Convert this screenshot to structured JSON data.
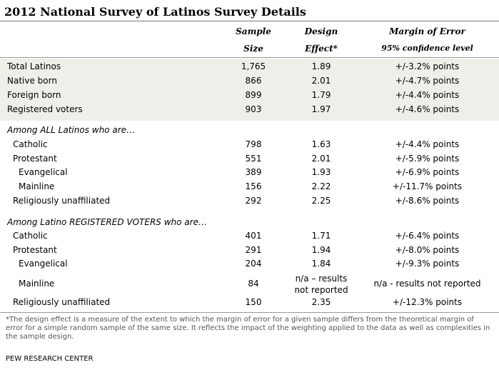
{
  "title": "2012 National Survey of Latinos Survey Details",
  "headers": {
    "sample_line1": "Sample",
    "sample_line2": "Size",
    "design_line1": "Design",
    "design_line2": "Effect*",
    "moe_line1": "Margin of Error",
    "moe_line2": "95% confidence level"
  },
  "rows_total": [
    {
      "label": "Total Latinos",
      "size": "1,765",
      "effect": "1.89",
      "moe": "+/-3.2% points"
    },
    {
      "label": "Native born",
      "size": "866",
      "effect": "2.01",
      "moe": "+/-4.7% points"
    },
    {
      "label": "Foreign born",
      "size": "899",
      "effect": "1.79",
      "moe": "+/-4.4% points"
    },
    {
      "label": "Registered voters",
      "size": "903",
      "effect": "1.97",
      "moe": "+/-4.6% points"
    }
  ],
  "group_all": {
    "heading": "Among ALL Latinos who are…",
    "rows": [
      {
        "label": "Catholic",
        "size": "798",
        "effect": "1.63",
        "moe": "+/-4.4% points"
      },
      {
        "label": "Protestant",
        "size": "551",
        "effect": "2.01",
        "moe": "+/-5.9% points"
      },
      {
        "label": "Evangelical",
        "size": "389",
        "effect": "1.93",
        "moe": "+/-6.9% points"
      },
      {
        "label": "Mainline",
        "size": "156",
        "effect": "2.22",
        "moe": "+/-11.7% points"
      },
      {
        "label": "Religiously unaffiliated",
        "size": "292",
        "effect": "2.25",
        "moe": "+/-8.6% points"
      }
    ]
  },
  "group_rv": {
    "heading": "Among Latino REGISTERED VOTERS who are…",
    "rows": [
      {
        "label": "Catholic",
        "size": "401",
        "effect": "1.71",
        "moe": "+/-6.4% points"
      },
      {
        "label": "Protestant",
        "size": "291",
        "effect": "1.94",
        "moe": "+/-8.0% points"
      },
      {
        "label": "Evangelical",
        "size": "204",
        "effect": "1.84",
        "moe": "+/-9.3% points"
      },
      {
        "label": "Mainline",
        "size": "84",
        "effect_line1": "n/a – results",
        "effect_line2": "not reported",
        "moe": "n/a - results not reported"
      },
      {
        "label": "Religiously unaffiliated",
        "size": "150",
        "effect": "2.35",
        "moe": "+/-12.3% points"
      }
    ]
  },
  "footnote": "*The design effect is a measure of the extent to which the margin of error for a given sample differs from the theoretical margin of error for a simple random sample of the same size. It reflects the impact of the weighting applied to the data as well as complexities in the sample design.",
  "source": "PEW RESEARCH CENTER"
}
